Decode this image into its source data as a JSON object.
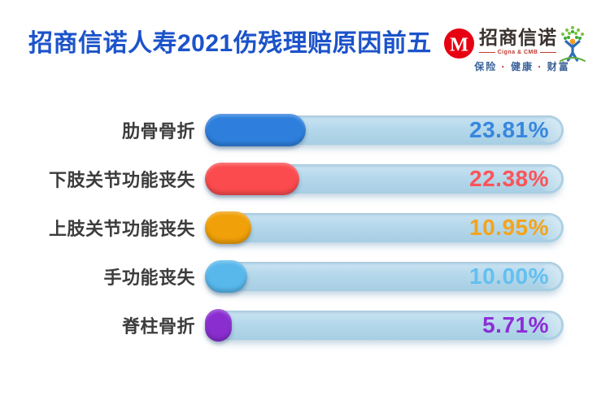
{
  "header": {
    "title": "招商信诺人寿2021伤残理赔原因前五",
    "title_color": "#1C53CA",
    "logo": {
      "brand_cn": "招商信诺",
      "brand_en": "Cigna & CMB",
      "tagline_parts": [
        "保险",
        "健康",
        "财富"
      ],
      "tagline_separator": "·",
      "m_icon_color": "#E60012",
      "tree_icon_colors": {
        "leaves": [
          "#3DA935",
          "#7CC242"
        ],
        "head": "#F59A23",
        "body": "#2F6EB5",
        "ground": "#5FAF3C"
      }
    }
  },
  "chart_data": {
    "type": "bar",
    "orientation": "horizontal",
    "title": "招商信诺人寿2021伤残理赔原因前五",
    "categories": [
      "肋骨骨折",
      "下肢关节功能丧失",
      "上肢关节功能丧失",
      "手功能丧失",
      "脊柱骨折"
    ],
    "values": [
      23.81,
      22.38,
      10.95,
      10.0,
      5.71
    ],
    "value_labels": [
      "23.81%",
      "22.38%",
      "10.95%",
      "10.00%",
      "5.71%"
    ],
    "bar_colors": [
      "#2E7FDD",
      "#FB4B4E",
      "#F0A008",
      "#58B8EC",
      "#8A2ED0"
    ],
    "value_label_colors": [
      "#3787DF",
      "#FB5458",
      "#F3A41C",
      "#63C0F0",
      "#8C2ED6"
    ],
    "track_color": "#B5D8EB",
    "xlim": [
      0,
      100
    ],
    "grid": false,
    "legend": "none",
    "fill_scale_hint": 1.18,
    "min_fill_pct_hint": 7.5
  }
}
